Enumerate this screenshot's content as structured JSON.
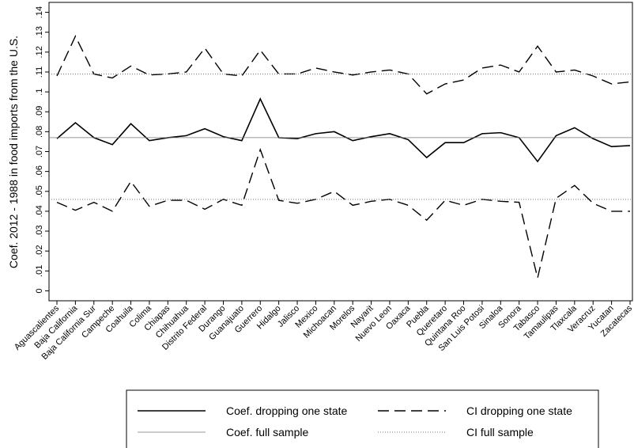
{
  "chart_data": {
    "type": "line",
    "y_label": "Coef. 2012 - 1988 in food imports from the U.S.",
    "categories": [
      "Aguascalientes",
      "Baja California",
      "Baja California Sur",
      "Campeche",
      "Coahuila",
      "Colima",
      "Chiapas",
      "Chihuahua",
      "Distrito Federal",
      "Durango",
      "Guanajuato",
      "Guerrero",
      "Hidalgo",
      "Jalisco",
      "Mexico",
      "Michoacan",
      "Morelos",
      "Nayarit",
      "Nuevo Leon",
      "Oaxaca",
      "Puebla",
      "Queretaro",
      "Quintana Roo",
      "San Luis Potosi",
      "Sinaloa",
      "Sonora",
      "Tabasco",
      "Tamaulipas",
      "Tlaxcala",
      "Veracruz",
      "Yucatan",
      "Zacatecas"
    ],
    "series": [
      {
        "name": "Coef. dropping one state",
        "style": "solid",
        "color": "#000000",
        "values": [
          0.0765,
          0.0845,
          0.077,
          0.0735,
          0.084,
          0.0755,
          0.077,
          0.078,
          0.0815,
          0.0775,
          0.0755,
          0.0965,
          0.077,
          0.0765,
          0.079,
          0.08,
          0.0755,
          0.0775,
          0.079,
          0.076,
          0.067,
          0.0745,
          0.0745,
          0.079,
          0.0795,
          0.077,
          0.065,
          0.078,
          0.082,
          0.0765,
          0.0725,
          0.073
        ]
      },
      {
        "name": "CI dropping one state",
        "style": "dashed",
        "color": "#000000",
        "upper": [
          0.108,
          0.128,
          0.109,
          0.107,
          0.113,
          0.1085,
          0.109,
          0.11,
          0.122,
          0.109,
          0.108,
          0.121,
          0.109,
          0.109,
          0.112,
          0.11,
          0.1085,
          0.11,
          0.111,
          0.109,
          0.099,
          0.104,
          0.106,
          0.112,
          0.1135,
          0.11,
          0.123,
          0.11,
          0.111,
          0.108,
          0.104,
          0.105
        ],
        "lower": [
          0.0445,
          0.0405,
          0.0445,
          0.04,
          0.055,
          0.0425,
          0.0455,
          0.0455,
          0.041,
          0.046,
          0.043,
          0.071,
          0.0455,
          0.044,
          0.046,
          0.05,
          0.043,
          0.045,
          0.046,
          0.043,
          0.0355,
          0.0455,
          0.043,
          0.046,
          0.045,
          0.0445,
          0.0065,
          0.0465,
          0.053,
          0.044,
          0.04,
          0.04
        ]
      },
      {
        "name": "Coef. full sample",
        "style": "thin",
        "color": "#777777",
        "levels": [
          0.077
        ]
      },
      {
        "name": "CI full sample",
        "style": "dotted",
        "color": "#777777",
        "levels": [
          0.046,
          0.109
        ]
      }
    ],
    "ylim": [
      -0.005,
      0.145
    ],
    "yticks": [
      0,
      {
        "value": 0.01,
        "label": ".01"
      },
      {
        "value": 0.02,
        "label": ".02"
      },
      {
        "value": 0.03,
        "label": ".03"
      },
      {
        "value": 0.04,
        "label": ".04"
      },
      {
        "value": 0.05,
        "label": ".05"
      },
      {
        "value": 0.06,
        "label": ".06"
      },
      {
        "value": 0.07,
        "label": ".07"
      },
      {
        "value": 0.08,
        "label": ".08"
      },
      {
        "value": 0.09,
        "label": ".09"
      },
      {
        "value": 0.1,
        "label": ".1"
      },
      {
        "value": 0.11,
        "label": ".11"
      },
      {
        "value": 0.12,
        "label": ".12"
      },
      {
        "value": 0.13,
        "label": ".13"
      },
      {
        "value": 0.14,
        "label": ".14"
      }
    ]
  }
}
